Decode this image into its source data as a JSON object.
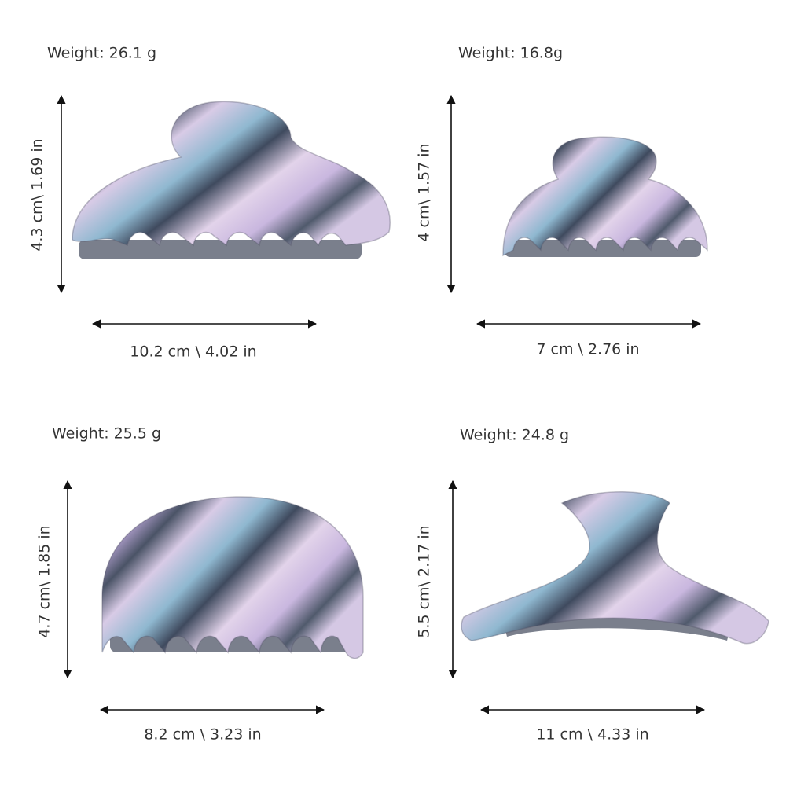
{
  "items": [
    {
      "weight": "Weight: 26.1 g",
      "height": "4.3 cm\\ 1.69 in",
      "width": "10.2 cm \\ 4.02 in"
    },
    {
      "weight": "Weight: 16.8g",
      "height": "4 cm\\ 1.57 in",
      "width": "7 cm \\ 2.76 in"
    },
    {
      "weight": "Weight: 25.5 g",
      "height": "4.7 cm\\ 1.85 in",
      "width": "8.2 cm \\ 3.23 in"
    },
    {
      "weight": "Weight: 24.8 g",
      "height": "5.5 cm\\ 2.17 in",
      "width": "11 cm \\ 4.33 in"
    }
  ]
}
